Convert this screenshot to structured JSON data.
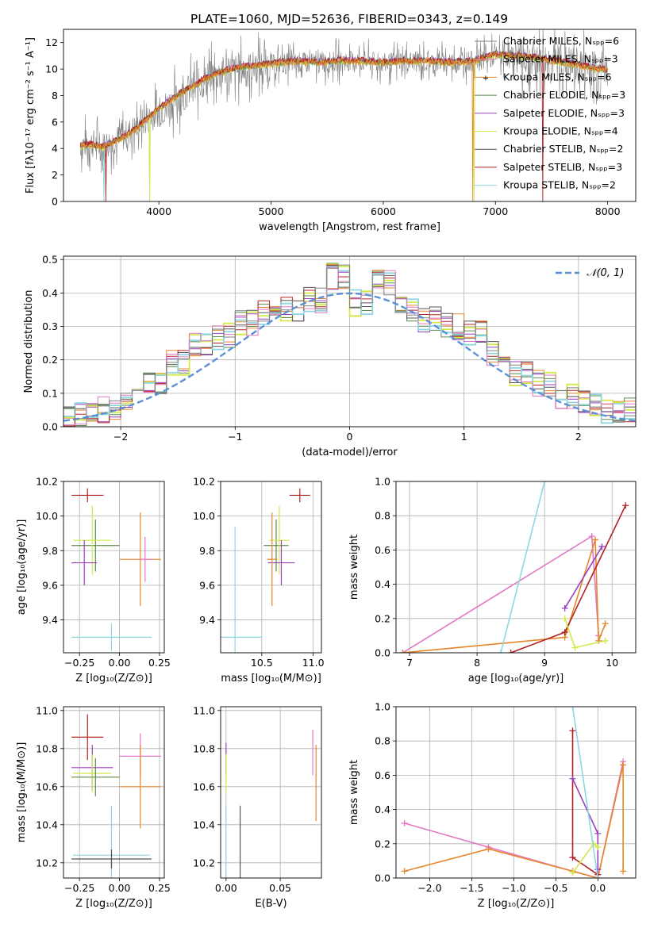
{
  "colors": {
    "chabrier_miles": "#808080",
    "salpeter_miles": "#e377c2",
    "kroupa_miles": "#e6862c",
    "chabrier_elodie": "#5a8a4a",
    "salpeter_elodie": "#9b3fbf",
    "kroupa_elodie": "#d4e84a",
    "chabrier_stelib": "#555555",
    "salpeter_stelib": "#b22222",
    "kroupa_stelib": "#8fd6e0",
    "normal_curve": "#5b8fd6"
  },
  "chart_data": [
    {
      "type": "line",
      "title": "PLATE=1060, MJD=52636, FIBERID=0343, z=0.149",
      "xlabel": "wavelength [Angstrom, rest frame]",
      "ylabel": "Flux [fλ10⁻¹⁷ erg cm⁻² s⁻¹ A⁻¹]",
      "xlim": [
        3150,
        8250
      ],
      "ylim": [
        0,
        13
      ],
      "xticks": [
        "4000",
        "5000",
        "6000",
        "7000",
        "8000"
      ],
      "yticks": [
        "0",
        "2",
        "4",
        "6",
        "8",
        "10",
        "12"
      ],
      "legend_position": "top-right",
      "legend": [
        "Chabrier MILES, Nₛₚₚ=6",
        "Salpeter MILES, Nₛₚₚ=3",
        "Kroupa MILES, Nₛₚₚ=6",
        "Chabrier ELODIE, Nₛₚₚ=3",
        "Salpeter ELODIE, Nₛₚₚ=3",
        "Kroupa ELODIE, Nₛₚₚ=4",
        "Chabrier STELIB, Nₛₚₚ=2",
        "Salpeter STELIB, Nₛₚₚ=3",
        "Kroupa STELIB, Nₛₚₚ=2"
      ],
      "x": [
        3300,
        3400,
        3500,
        3600,
        3700,
        3800,
        3900,
        4000,
        4100,
        4200,
        4300,
        4400,
        4500,
        4600,
        4700,
        4800,
        4900,
        5000,
        5200,
        5400,
        5600,
        5800,
        6000,
        6200,
        6400,
        6600,
        6800,
        7000,
        7200,
        7400,
        7600,
        7800,
        8000
      ],
      "series": [
        {
          "name": "data",
          "values": [
            4.3,
            4.4,
            4.2,
            4.6,
            5.0,
            5.6,
            6.2,
            6.8,
            7.4,
            8.0,
            8.6,
            9.0,
            9.5,
            9.8,
            9.9,
            10.0,
            10.2,
            10.3,
            10.5,
            10.4,
            10.6,
            10.6,
            10.4,
            10.6,
            10.5,
            10.5,
            10.6,
            11.0,
            10.9,
            10.7,
            10.4,
            10.2,
            10.0
          ]
        },
        {
          "name": "model",
          "values": [
            4.2,
            4.3,
            4.1,
            4.5,
            4.9,
            5.5,
            6.3,
            7.0,
            7.6,
            8.2,
            8.7,
            9.2,
            9.6,
            9.9,
            10.1,
            10.2,
            10.3,
            10.4,
            10.6,
            10.5,
            10.6,
            10.6,
            10.5,
            10.6,
            10.6,
            10.5,
            10.6,
            11.1,
            11.0,
            10.8,
            10.5,
            10.2,
            9.9
          ]
        }
      ]
    },
    {
      "type": "line",
      "xlabel": "(data-model)/error",
      "ylabel": "Normed distribution",
      "xlim": [
        -2.5,
        2.5
      ],
      "ylim": [
        0,
        0.51
      ],
      "xticks": [
        "−2",
        "−1",
        "0",
        "1",
        "2"
      ],
      "yticks": [
        "0.0",
        "0.1",
        "0.2",
        "0.3",
        "0.4",
        "0.5"
      ],
      "grid": true,
      "legend_position": "top-right",
      "legend": [
        "𝒩(0, 1)"
      ],
      "series": [
        {
          "name": "histogram",
          "x": [
            -2.5,
            -2.3,
            -2.1,
            -1.9,
            -1.7,
            -1.5,
            -1.3,
            -1.1,
            -0.9,
            -0.7,
            -0.5,
            -0.3,
            -0.1,
            0.1,
            0.3,
            0.5,
            0.7,
            0.9,
            1.1,
            1.3,
            1.5,
            1.7,
            1.9,
            2.1,
            2.3
          ],
          "values": [
            0.03,
            0.04,
            0.05,
            0.09,
            0.13,
            0.19,
            0.24,
            0.27,
            0.31,
            0.34,
            0.35,
            0.38,
            0.45,
            0.37,
            0.43,
            0.35,
            0.32,
            0.3,
            0.28,
            0.22,
            0.16,
            0.13,
            0.09,
            0.07,
            0.05
          ]
        }
      ]
    },
    {
      "type": "scatter",
      "xlabel": "Z [log₁₀(Z/Z⊙)]",
      "ylabel": "age  [log₁₀(age/yr)]",
      "xlim": [
        -0.35,
        0.28
      ],
      "ylim": [
        9.21,
        10.2
      ],
      "xticks": [
        "−0.25",
        "0.00",
        "0.25"
      ],
      "yticks": [
        "9.4",
        "9.6",
        "9.8",
        "10.0",
        "10.2"
      ],
      "grid": true,
      "points": [
        {
          "series": "Salpeter STELIB",
          "x": -0.2,
          "y": 10.12,
          "xerr": 0.1,
          "yerr": 0.04
        },
        {
          "series": "Chabrier ELODIE",
          "x": -0.15,
          "y": 9.83,
          "xerr": 0.15,
          "yerr": 0.15
        },
        {
          "series": "Kroupa ELODIE",
          "x": -0.17,
          "y": 9.86,
          "xerr": 0.12,
          "yerr": 0.2
        },
        {
          "series": "Salpeter ELODIE",
          "x": -0.22,
          "y": 9.73,
          "xerr": 0.08,
          "yerr": 0.13
        },
        {
          "series": "Kroupa MILES",
          "x": 0.13,
          "y": 9.75,
          "xerr": 0.13,
          "yerr": 0.27
        },
        {
          "series": "Salpeter MILES",
          "x": 0.16,
          "y": 9.75,
          "xerr": 0.04,
          "yerr": 0.13
        },
        {
          "series": "Kroupa STELIB",
          "x": -0.05,
          "y": 9.3,
          "xerr": 0.25,
          "yerr": 0.08
        }
      ]
    },
    {
      "type": "scatter",
      "xlabel": "mass [log₁₀(M/M⊙)]",
      "xlim": [
        10.1,
        11.08
      ],
      "ylim": [
        9.21,
        10.2
      ],
      "xticks": [
        "10.5",
        "11.0"
      ],
      "yticks": [
        "9.4",
        "9.6",
        "9.8",
        "10.0",
        "10.2"
      ],
      "grid": true,
      "points": [
        {
          "series": "Salpeter STELIB",
          "x": 10.87,
          "y": 10.12,
          "xerr": 0.1,
          "yerr": 0.04
        },
        {
          "series": "Chabrier ELODIE",
          "x": 10.64,
          "y": 9.83,
          "xerr": 0.12,
          "yerr": 0.15
        },
        {
          "series": "Kroupa ELODIE",
          "x": 10.67,
          "y": 9.86,
          "xerr": 0.1,
          "yerr": 0.2
        },
        {
          "series": "Salpeter ELODIE",
          "x": 10.69,
          "y": 9.73,
          "xerr": 0.13,
          "yerr": 0.13
        },
        {
          "series": "Kroupa MILES",
          "x": 10.6,
          "y": 9.75,
          "xerr": 0.05,
          "yerr": 0.27
        },
        {
          "series": "Kroupa STELIB",
          "x": 10.24,
          "y": 9.3,
          "xerr": 0.26,
          "yerr": 0.64
        }
      ]
    },
    {
      "type": "line",
      "xlabel": "age  [log₁₀(age/yr)]",
      "ylabel": "mass weight",
      "xlim": [
        6.8,
        10.35
      ],
      "ylim": [
        0,
        1.0
      ],
      "xticks": [
        "7",
        "8",
        "9",
        "10"
      ],
      "yticks": [
        "0.0",
        "0.2",
        "0.4",
        "0.6",
        "0.8",
        "1.0"
      ],
      "grid": true,
      "series": [
        {
          "name": "Salpeter MILES",
          "x": [
            6.9,
            9.7,
            9.8
          ],
          "values": [
            0.0,
            0.68,
            0.1
          ]
        },
        {
          "name": "Kroupa MILES",
          "x": [
            6.9,
            9.3,
            9.75,
            9.8,
            9.9
          ],
          "values": [
            0.0,
            0.09,
            0.66,
            0.07,
            0.17
          ]
        },
        {
          "name": "Salpeter STELIB",
          "x": [
            8.5,
            9.3,
            10.2
          ],
          "values": [
            0.0,
            0.12,
            0.86
          ]
        },
        {
          "name": "Salpeter ELODIE",
          "x": [
            9.3,
            9.85
          ],
          "values": [
            0.26,
            0.62
          ]
        },
        {
          "name": "Kroupa ELODIE",
          "x": [
            9.3,
            9.45,
            9.9
          ],
          "values": [
            0.2,
            0.03,
            0.07
          ]
        },
        {
          "name": "Kroupa STELIB",
          "x": [
            8.35,
            9.0
          ],
          "values": [
            0.0,
            1.0
          ]
        }
      ]
    },
    {
      "type": "scatter",
      "xlabel": "Z [log₁₀(Z/Z⊙)]",
      "ylabel": "mass [log₁₀(M/M⊙)]",
      "xlim": [
        -0.35,
        0.28
      ],
      "ylim": [
        10.12,
        11.02
      ],
      "xticks": [
        "−0.25",
        "0.00",
        "0.25"
      ],
      "yticks": [
        "10.2",
        "10.4",
        "10.6",
        "10.8",
        "11.0"
      ],
      "grid": true,
      "points": [
        {
          "series": "Salpeter STELIB",
          "x": -0.2,
          "y": 10.86,
          "xerr": 0.1,
          "yerr": 0.12
        },
        {
          "series": "Salpeter ELODIE",
          "x": -0.17,
          "y": 10.7,
          "xerr": 0.13,
          "yerr": 0.12
        },
        {
          "series": "Kroupa ELODIE",
          "x": -0.17,
          "y": 10.67,
          "xerr": 0.12,
          "yerr": 0.1
        },
        {
          "series": "Chabrier ELODIE",
          "x": -0.15,
          "y": 10.65,
          "xerr": 0.15,
          "yerr": 0.1
        },
        {
          "series": "Salpeter MILES",
          "x": 0.13,
          "y": 10.76,
          "xerr": 0.13,
          "yerr": 0.12
        },
        {
          "series": "Kroupa MILES",
          "x": 0.13,
          "y": 10.6,
          "xerr": 0.13,
          "yerr": 0.22
        },
        {
          "series": "Kroupa STELIB",
          "x": -0.05,
          "y": 10.24,
          "xerr": 0.24,
          "yerr": 0.26
        },
        {
          "series": "Chabrier STELIB",
          "x": -0.05,
          "y": 10.22,
          "xerr": 0.25,
          "yerr": 0.05
        }
      ]
    },
    {
      "type": "scatter",
      "xlabel": "E(B-V)",
      "xlim": [
        -0.005,
        0.088
      ],
      "ylim": [
        10.12,
        11.02
      ],
      "xticks": [
        "0.00",
        "0.05"
      ],
      "yticks": [
        "10.2",
        "10.4",
        "10.6",
        "10.8",
        "11.0"
      ],
      "grid": true,
      "points": [
        {
          "series": "Salpeter ELODIE",
          "x": 0.0,
          "y": 10.75,
          "yerr": 0.08
        },
        {
          "series": "Kroupa ELODIE",
          "x": 0.0,
          "y": 10.67,
          "yerr": 0.1
        },
        {
          "series": "Kroupa STELIB",
          "x": 0.0,
          "y": 10.28,
          "yerr": 0.22
        },
        {
          "series": "Chabrier STELIB",
          "x": 0.013,
          "y": 10.3,
          "yerr": 0.2
        },
        {
          "series": "Salpeter MILES",
          "x": 0.08,
          "y": 10.78,
          "yerr": 0.12
        },
        {
          "series": "Kroupa MILES",
          "x": 0.083,
          "y": 10.62,
          "yerr": 0.2
        }
      ]
    },
    {
      "type": "line",
      "xlabel": "Z [log₁₀(Z/Z⊙)]",
      "ylabel": "mass weight",
      "xlim": [
        -2.4,
        0.45
      ],
      "ylim": [
        0,
        1.0
      ],
      "xticks": [
        "−2.0",
        "−1.5",
        "−1.0",
        "−0.5",
        "0.0"
      ],
      "yticks": [
        "0.0",
        "0.2",
        "0.4",
        "0.6",
        "0.8",
        "1.0"
      ],
      "grid": true,
      "series": [
        {
          "name": "Salpeter MILES",
          "x": [
            -2.3,
            -1.3,
            -0.3,
            0.0,
            0.3
          ],
          "values": [
            0.32,
            0.18,
            0.04,
            0.0,
            0.68
          ]
        },
        {
          "name": "Kroupa MILES",
          "x": [
            -2.3,
            -1.3,
            -0.3,
            0.0,
            0.3,
            0.3
          ],
          "values": [
            0.04,
            0.17,
            0.04,
            0.0,
            0.66,
            0.04
          ]
        },
        {
          "name": "Salpeter STELIB",
          "x": [
            -0.3,
            -0.3,
            0.0
          ],
          "values": [
            0.86,
            0.12,
            0.02
          ]
        },
        {
          "name": "Salpeter ELODIE",
          "x": [
            -0.3,
            0.0,
            0.0
          ],
          "values": [
            0.58,
            0.26,
            0.05
          ]
        },
        {
          "name": "Kroupa ELODIE",
          "x": [
            -0.3,
            -0.05,
            0.0
          ],
          "values": [
            0.03,
            0.2,
            0.18
          ]
        },
        {
          "name": "Kroupa STELIB",
          "x": [
            -0.3,
            0.0
          ],
          "values": [
            1.0,
            0.0
          ]
        }
      ]
    }
  ]
}
